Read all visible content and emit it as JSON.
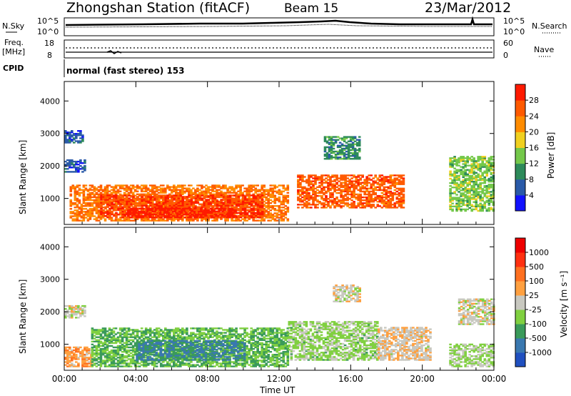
{
  "header": {
    "station": "Zhongshan Station (fitACF)",
    "beam": "Beam 15",
    "date": "23/Mar/2012"
  },
  "top_panels": {
    "nsky_label": "N.Sky",
    "nsky_ticks": [
      "10^5",
      "10^0"
    ],
    "nsearch_label": "N.Search",
    "nsearch_ticks": [
      "10^5",
      "10^0"
    ],
    "freq_label": "Freq.",
    "freq_unit": "[MHz]",
    "freq_ticks": [
      "18",
      "8"
    ],
    "nave_label": "Nave",
    "nave_ticks": [
      "60",
      "0"
    ],
    "cpid_label": "CPID",
    "cpid_text": "normal (fast stereo) 153"
  },
  "colors": {
    "power_scale": [
      "#1212ff",
      "#2a5aa8",
      "#2d8a5a",
      "#74c84a",
      "#f0d020",
      "#ff8c00",
      "#ff5a00",
      "#ff1a00"
    ],
    "velocity_scale": [
      "#2050c0",
      "#3a78b0",
      "#3a9a5a",
      "#80d040",
      "#c8c8c0",
      "#ffa040",
      "#ff7020",
      "#ff3010",
      "#ee0000"
    ]
  },
  "chart_data": [
    {
      "type": "heatmap",
      "title": "Power",
      "ylabel": "Slant Range [km]",
      "ylim": [
        200,
        4600
      ],
      "y_ticks": [
        "4000",
        "3000",
        "2000",
        "1000"
      ],
      "x_ticks": [
        "00:00",
        "04:00",
        "08:00",
        "12:00",
        "16:00",
        "20:00",
        "00:00"
      ],
      "colorbar": {
        "label": "Power [dB]",
        "ticks": [
          "28",
          "24",
          "20",
          "16",
          "12",
          "8",
          "4"
        ],
        "range": [
          0,
          32
        ]
      },
      "regions": [
        {
          "t_start": 0.0,
          "t_end": 1.2,
          "range_km": [
            1800,
            2200
          ],
          "value": 6
        },
        {
          "t_start": 0.0,
          "t_end": 1.0,
          "range_km": [
            2700,
            3100
          ],
          "value": 6
        },
        {
          "t_start": 0.3,
          "t_end": 12.5,
          "range_km": [
            300,
            1400
          ],
          "value": 24
        },
        {
          "t_start": 2.0,
          "t_end": 11.0,
          "range_km": [
            400,
            1100
          ],
          "value": 28
        },
        {
          "t_start": 3.5,
          "t_end": 9.5,
          "range_km": [
            400,
            700
          ],
          "value": 30
        },
        {
          "t_start": 13.0,
          "t_end": 19.0,
          "range_km": [
            700,
            1700
          ],
          "value": 26
        },
        {
          "t_start": 14.5,
          "t_end": 16.5,
          "range_km": [
            2200,
            2900
          ],
          "value": 10
        },
        {
          "t_start": 21.5,
          "t_end": 24.0,
          "range_km": [
            600,
            2300
          ],
          "value": 14
        }
      ]
    },
    {
      "type": "heatmap",
      "title": "Velocity",
      "ylabel": "Slant Range [km]",
      "xlabel": "Time UT",
      "ylim": [
        200,
        4600
      ],
      "y_ticks": [
        "4000",
        "3000",
        "2000",
        "1000"
      ],
      "x_ticks": [
        "00:00",
        "04:00",
        "08:00",
        "12:00",
        "16:00",
        "20:00",
        "00:00"
      ],
      "colorbar": {
        "label": "Velocity [m s⁻¹]",
        "ticks": [
          "1000",
          "500",
          "100",
          "25",
          "-25",
          "-100",
          "-500",
          "-1000"
        ],
        "range": [
          -1200,
          1200
        ]
      },
      "regions": [
        {
          "t_start": 0.0,
          "t_end": 1.2,
          "range_km": [
            1800,
            2200
          ],
          "value": 0
        },
        {
          "t_start": 0.0,
          "t_end": 1.5,
          "range_km": [
            300,
            900
          ],
          "value": 300
        },
        {
          "t_start": 1.5,
          "t_end": 12.5,
          "range_km": [
            300,
            1500
          ],
          "value": -400
        },
        {
          "t_start": 4.0,
          "t_end": 10.0,
          "range_km": [
            500,
            1100
          ],
          "value": -700
        },
        {
          "t_start": 12.5,
          "t_end": 17.5,
          "range_km": [
            500,
            1700
          ],
          "value": -200
        },
        {
          "t_start": 17.5,
          "t_end": 20.5,
          "range_km": [
            500,
            1500
          ],
          "value": 80
        },
        {
          "t_start": 15.0,
          "t_end": 16.5,
          "range_km": [
            2300,
            2800
          ],
          "value": 0
        },
        {
          "t_start": 22.0,
          "t_end": 24.0,
          "range_km": [
            1600,
            2400
          ],
          "value": 0
        },
        {
          "t_start": 21.5,
          "t_end": 24.0,
          "range_km": [
            300,
            1000
          ],
          "value": -150
        }
      ]
    }
  ]
}
